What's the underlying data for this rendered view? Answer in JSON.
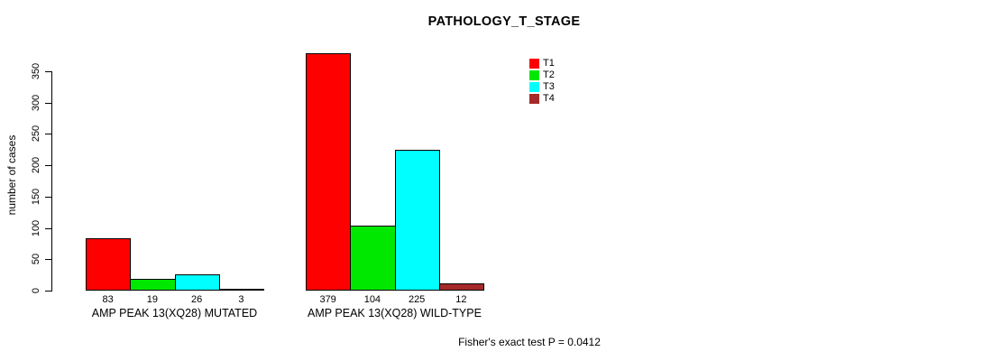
{
  "title": "PATHOLOGY_T_STAGE",
  "footnote": "Fisher's exact test P = 0.0412",
  "chart_data": {
    "type": "bar",
    "title": "PATHOLOGY_T_STAGE",
    "xlabel": "",
    "ylabel": "number of cases",
    "categories": [
      "AMP PEAK 13(XQ28) MUTATED",
      "AMP PEAK 13(XQ28) WILD-TYPE"
    ],
    "series": [
      {
        "name": "T1",
        "color": "#FF0000",
        "values": [
          83,
          379
        ]
      },
      {
        "name": "T2",
        "color": "#00E800",
        "values": [
          19,
          104
        ]
      },
      {
        "name": "T3",
        "color": "#00FFFF",
        "values": [
          26,
          225
        ]
      },
      {
        "name": "T4",
        "color": "#A52A2A",
        "values": [
          3,
          12
        ]
      }
    ],
    "bar_value_labels": [
      [
        "83",
        "19",
        "26",
        "3"
      ],
      [
        "379",
        "104",
        "225",
        "12"
      ]
    ],
    "yticks": [
      0,
      50,
      100,
      150,
      200,
      250,
      300,
      350
    ],
    "ylim": [
      0,
      380
    ],
    "grid": false,
    "legend_position": "top-right",
    "bar_border_color": "#000000",
    "annotation": "Fisher's exact test P = 0.0412"
  }
}
